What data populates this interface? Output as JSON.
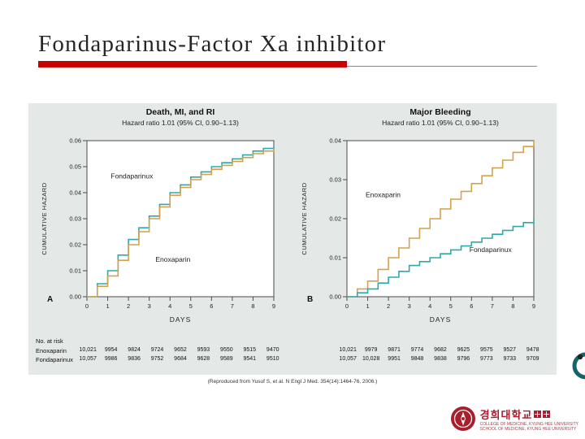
{
  "slide": {
    "title": "Fondaparinus-Factor Xa inhibitor",
    "accent_color": "#c90000"
  },
  "figure": {
    "risk_table": {
      "label": "No. at risk",
      "rows": [
        {
          "name": "Enoxaparin",
          "left": [
            "10,021",
            "9954",
            "9824",
            "9724",
            "9652",
            "9593",
            "9550",
            "9515",
            "9470"
          ],
          "right": [
            "10,021",
            "9979",
            "9871",
            "9774",
            "9682",
            "9625",
            "9575",
            "9527",
            "9478"
          ]
        },
        {
          "name": "Fondaparinux",
          "left": [
            "10,057",
            "9986",
            "9836",
            "9752",
            "9684",
            "9628",
            "9589",
            "9541",
            "9510"
          ],
          "right": [
            "10,057",
            "10,028",
            "9951",
            "9848",
            "9838",
            "9796",
            "9773",
            "9733",
            "9709"
          ]
        }
      ]
    },
    "citation": "(Reproduced from Yusuf S, et al. N Engl J Med. 354(14):1464-76, 2006.)"
  },
  "chart_data": [
    {
      "type": "line",
      "panel": "A",
      "title": "Death, MI, and RI",
      "subtitle": "Hazard ratio 1.01 (95% CI, 0.90–1.13)",
      "xlabel": "DAYS",
      "ylabel": "CUMULATIVE HAZARD",
      "x": [
        0,
        1,
        2,
        3,
        4,
        5,
        6,
        7,
        8,
        9
      ],
      "ylim": [
        0,
        0.06
      ],
      "yticks": [
        0,
        0.01,
        0.02,
        0.03,
        0.04,
        0.05,
        0.06
      ],
      "grid": false,
      "legend_position": "inline-labels",
      "series": [
        {
          "name": "Fondaparinux",
          "color": "#2fa8ad",
          "values": [
            0,
            0.01,
            0.022,
            0.031,
            0.04,
            0.046,
            0.05,
            0.053,
            0.056,
            0.058
          ],
          "label_pos": {
            "x": 1.15,
            "y": 0.0455
          }
        },
        {
          "name": "Enoxaparin",
          "color": "#d2a24c",
          "values": [
            0,
            0.008,
            0.02,
            0.03,
            0.039,
            0.045,
            0.049,
            0.052,
            0.055,
            0.057
          ],
          "label_pos": {
            "x": 3.3,
            "y": 0.0135
          }
        }
      ]
    },
    {
      "type": "line",
      "panel": "B",
      "title": "Major Bleeding",
      "subtitle": "Hazard ratio 1.01 (95% CI, 0.90–1.13)",
      "xlabel": "DAYS",
      "ylabel": "CUMULATIVE HAZARD",
      "x": [
        0,
        1,
        2,
        3,
        4,
        5,
        6,
        7,
        8,
        9
      ],
      "ylim": [
        0,
        0.04
      ],
      "yticks": [
        0,
        0.01,
        0.02,
        0.03,
        0.04
      ],
      "grid": false,
      "legend_position": "inline-labels",
      "series": [
        {
          "name": "Enoxaparin",
          "color": "#d2a24c",
          "values": [
            0,
            0.004,
            0.01,
            0.015,
            0.02,
            0.025,
            0.029,
            0.033,
            0.037,
            0.04
          ],
          "label_pos": {
            "x": 0.9,
            "y": 0.0255
          }
        },
        {
          "name": "Fondaparinux",
          "color": "#2fa8ad",
          "values": [
            0,
            0.002,
            0.005,
            0.008,
            0.01,
            0.012,
            0.014,
            0.016,
            0.018,
            0.02
          ],
          "label_pos": {
            "x": 5.9,
            "y": 0.0115
          }
        }
      ]
    }
  ],
  "logo": {
    "korean": "경희대학교",
    "line1": "COLLEGE OF MEDICINE, KYUNG HEE UNIVERSITY",
    "line2": "SCHOOL OF MEDICINE, KYUNG HEE UNIVERSITY"
  }
}
